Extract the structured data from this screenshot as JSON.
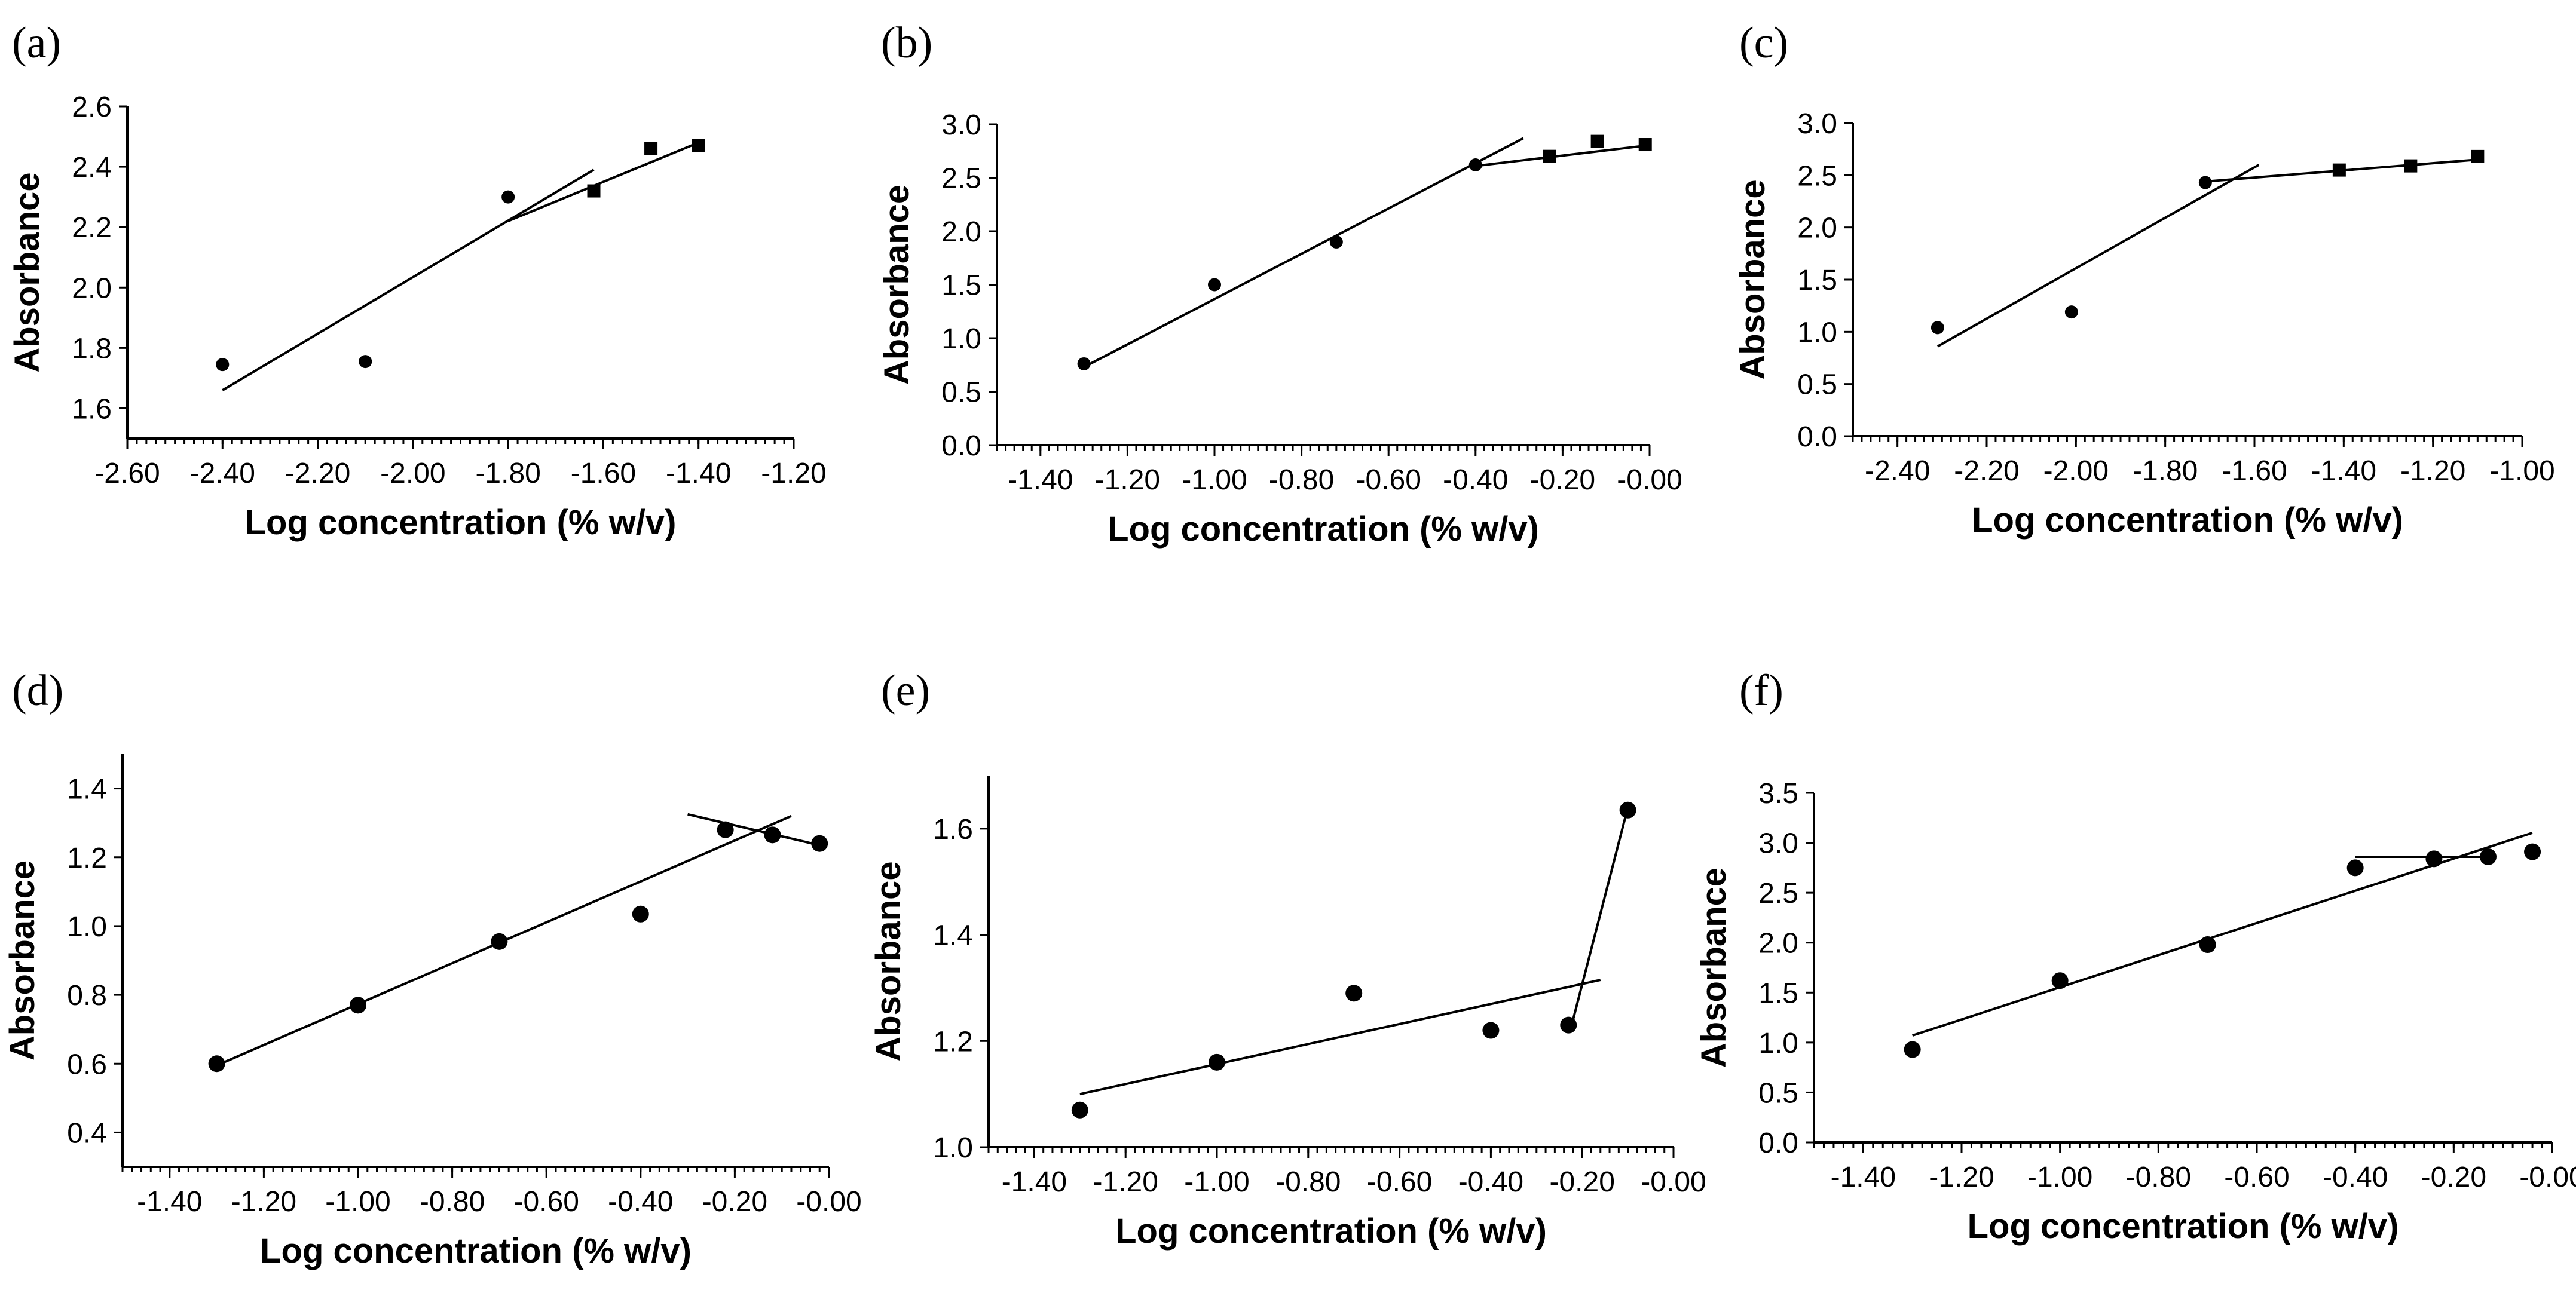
{
  "chart_data": [
    {
      "id": "a",
      "label": "(a)",
      "type": "scatter",
      "xlabel": "Log concentration (% w/v)",
      "ylabel": "Absorbance",
      "xlim": [
        -2.6,
        -1.2
      ],
      "ylim": [
        1.5,
        2.6
      ],
      "xticks": [
        "-2.60",
        "-2.40",
        "-2.20",
        "-2.00",
        "-1.80",
        "-1.60",
        "-1.40",
        "-1.20"
      ],
      "yticks": [
        "1.6",
        "1.8",
        "2.0",
        "2.2",
        "2.4",
        "2.6"
      ],
      "series": [
        {
          "name": "circles",
          "marker": "circle",
          "x": [
            -2.4,
            -2.1,
            -1.8
          ],
          "y": [
            1.745,
            1.755,
            2.3
          ]
        },
        {
          "name": "squares",
          "marker": "square",
          "x": [
            -1.62,
            -1.5,
            -1.4
          ],
          "y": [
            2.32,
            2.46,
            2.47
          ]
        }
      ],
      "lines": [
        {
          "x": [
            -2.4,
            -1.62
          ],
          "y": [
            1.66,
            2.39
          ]
        },
        {
          "x": [
            -1.8,
            -1.4
          ],
          "y": [
            2.22,
            2.48
          ]
        }
      ]
    },
    {
      "id": "b",
      "label": "(b)",
      "type": "scatter",
      "xlabel": "Log concentration (% w/v)",
      "ylabel": "Absorbance",
      "xlim": [
        -1.5,
        0.0
      ],
      "ylim": [
        0.0,
        3.0
      ],
      "xticks": [
        "-1.40",
        "-1.20",
        "-1.00",
        "-0.80",
        "-0.60",
        "-0.40",
        "-0.20",
        "-0.00"
      ],
      "yticks": [
        "0.0",
        "0.5",
        "1.0",
        "1.5",
        "2.0",
        "2.5",
        "3.0"
      ],
      "series": [
        {
          "name": "circles",
          "marker": "circle",
          "x": [
            -1.3,
            -1.0,
            -0.72,
            -0.4
          ],
          "y": [
            0.76,
            1.5,
            1.9,
            2.62
          ]
        },
        {
          "name": "squares",
          "marker": "square",
          "x": [
            -0.23,
            -0.12,
            -0.01
          ],
          "y": [
            2.7,
            2.84,
            2.81
          ]
        }
      ],
      "lines": [
        {
          "x": [
            -1.3,
            -0.29
          ],
          "y": [
            0.73,
            2.87
          ]
        },
        {
          "x": [
            -0.4,
            -0.01
          ],
          "y": [
            2.61,
            2.8
          ]
        }
      ]
    },
    {
      "id": "c",
      "label": "(c)",
      "type": "scatter",
      "xlabel": "Log concentration (% w/v)",
      "ylabel": "Absorbance",
      "xlim": [
        -2.5,
        -1.0
      ],
      "ylim": [
        0.0,
        3.0
      ],
      "xticks": [
        "-2.40",
        "-2.20",
        "-2.00",
        "-1.80",
        "-1.60",
        "-1.40",
        "-1.20",
        "-1.00"
      ],
      "yticks": [
        "0.0",
        "0.5",
        "1.0",
        "1.5",
        "2.0",
        "2.5",
        "3.0"
      ],
      "series": [
        {
          "name": "circles",
          "marker": "circle",
          "x": [
            -2.31,
            -2.01,
            -1.71
          ],
          "y": [
            1.04,
            1.19,
            2.43
          ]
        },
        {
          "name": "squares",
          "marker": "square",
          "x": [
            -1.41,
            -1.25,
            -1.1
          ],
          "y": [
            2.55,
            2.59,
            2.68
          ]
        }
      ],
      "lines": [
        {
          "x": [
            -2.31,
            -1.59
          ],
          "y": [
            0.86,
            2.6
          ]
        },
        {
          "x": [
            -1.71,
            -1.1
          ],
          "y": [
            2.44,
            2.65
          ]
        }
      ]
    },
    {
      "id": "d",
      "label": "(d)",
      "type": "scatter",
      "xlabel": "Log concentration (% w/v)",
      "ylabel": "Absorbance",
      "xlim": [
        -1.5,
        0.0
      ],
      "ylim": [
        0.3,
        1.5
      ],
      "xticks": [
        "-1.40",
        "-1.20",
        "-1.00",
        "-0.80",
        "-0.60",
        "-0.40",
        "-0.20",
        "-0.00"
      ],
      "yticks": [
        "0.4",
        "0.6",
        "0.8",
        "1.0",
        "1.2",
        "1.4"
      ],
      "series": [
        {
          "name": "circles",
          "marker": "circle",
          "x": [
            -1.3,
            -1.0,
            -0.7,
            -0.4,
            -0.22,
            -0.12,
            -0.02
          ],
          "y": [
            0.6,
            0.77,
            0.955,
            1.035,
            1.28,
            1.265,
            1.24
          ]
        }
      ],
      "lines": [
        {
          "x": [
            -1.3,
            -0.08
          ],
          "y": [
            0.595,
            1.32
          ]
        },
        {
          "x": [
            -0.3,
            -0.02
          ],
          "y": [
            1.325,
            1.235
          ]
        }
      ]
    },
    {
      "id": "e",
      "label": "(e)",
      "type": "scatter",
      "xlabel": "Log concentration (% w/v)",
      "ylabel": "Absorbance",
      "xlim": [
        -1.5,
        0.0
      ],
      "ylim": [
        1.0,
        1.7
      ],
      "xticks": [
        "-1.40",
        "-1.20",
        "-1.00",
        "-0.80",
        "-0.60",
        "-0.40",
        "-0.20",
        "-0.00"
      ],
      "yticks": [
        "1.0",
        "1.2",
        "1.4",
        "1.6"
      ],
      "series": [
        {
          "name": "circles",
          "marker": "circle",
          "x": [
            -1.3,
            -1.0,
            -0.7,
            -0.4,
            -0.23,
            -0.1
          ],
          "y": [
            1.07,
            1.16,
            1.29,
            1.22,
            1.23,
            1.635
          ]
        }
      ],
      "lines": [
        {
          "x": [
            -1.3,
            -0.16
          ],
          "y": [
            1.1,
            1.315
          ]
        },
        {
          "x": [
            -0.22,
            -0.1
          ],
          "y": [
            1.24,
            1.64
          ]
        }
      ]
    },
    {
      "id": "f",
      "label": "(f)",
      "type": "scatter",
      "xlabel": "Log concentration (% w/v)",
      "ylabel": "Absorbance",
      "xlim": [
        -1.5,
        0.0
      ],
      "ylim": [
        0.0,
        3.5
      ],
      "xticks": [
        "-1.40",
        "-1.20",
        "-1.00",
        "-0.80",
        "-0.60",
        "-0.40",
        "-0.20",
        "-0.00"
      ],
      "yticks": [
        "0.0",
        "0.5",
        "1.0",
        "1.5",
        "2.0",
        "2.5",
        "3.0",
        "3.5"
      ],
      "series": [
        {
          "name": "circles",
          "marker": "circle",
          "x": [
            -1.3,
            -1.0,
            -0.7,
            -0.4,
            -0.24,
            -0.13,
            -0.04
          ],
          "y": [
            0.93,
            1.62,
            1.98,
            2.75,
            2.84,
            2.86,
            2.91
          ]
        }
      ],
      "lines": [
        {
          "x": [
            -1.3,
            -0.04
          ],
          "y": [
            1.07,
            3.1
          ]
        },
        {
          "x": [
            -0.4,
            -0.12
          ],
          "y": [
            2.86,
            2.86
          ]
        }
      ]
    }
  ]
}
